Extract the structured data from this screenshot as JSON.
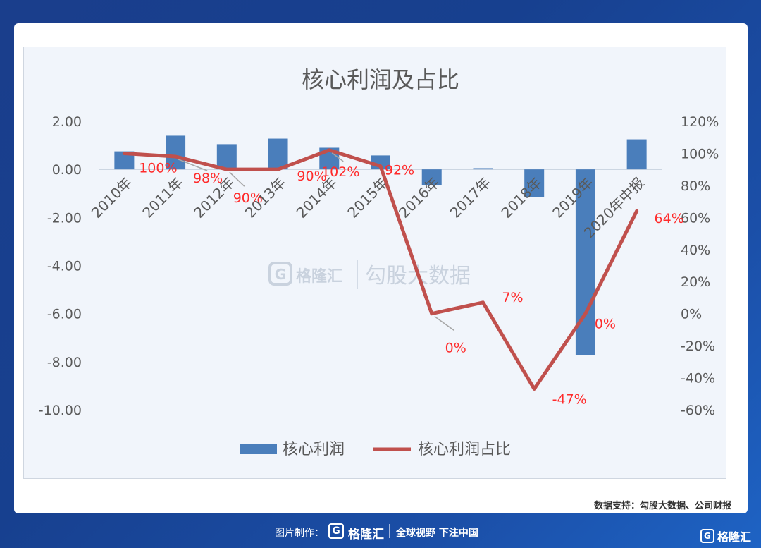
{
  "chart_data": {
    "type": "bar+line",
    "title": "核心利润及占比",
    "categories": [
      "2010年",
      "2011年",
      "2012年",
      "2013年",
      "2014年",
      "2015年",
      "2016年",
      "2017年",
      "2018年",
      "2019年",
      "2020年中报"
    ],
    "series": [
      {
        "name": "核心利润",
        "type": "bar",
        "axis": "left",
        "color": "#4a7ebb",
        "values": [
          0.75,
          1.4,
          1.05,
          1.28,
          0.9,
          0.58,
          -0.65,
          0.05,
          -1.15,
          -7.72,
          1.25
        ]
      },
      {
        "name": "核心利润占比",
        "type": "line",
        "axis": "right",
        "color": "#c0504d",
        "values": [
          100,
          98,
          90,
          90,
          102,
          92,
          0,
          7,
          -47,
          0,
          64
        ],
        "labels": [
          "100%",
          "98%",
          "90%",
          "90%",
          "102%",
          "92%",
          "0%",
          "7%",
          "-47%",
          "0%",
          "64%"
        ]
      }
    ],
    "left_axis": {
      "ticks": [
        "2.00",
        "0.00",
        "-2.00",
        "-4.00",
        "-6.00",
        "-8.00",
        "-10.00"
      ],
      "ylim": [
        -10,
        2
      ]
    },
    "right_axis": {
      "ticks": [
        "120%",
        "100%",
        "80%",
        "60%",
        "40%",
        "20%",
        "0%",
        "-20%",
        "-40%",
        "-60%"
      ],
      "ylim": [
        -60,
        120
      ]
    },
    "legend_position": "bottom",
    "grid": false
  },
  "watermark": {
    "brand": "格隆汇",
    "text": "勾股大数据"
  },
  "source": "数据支持：勾股大数据、公司财报",
  "footer": {
    "made_by": "图片制作：",
    "brand": "格隆汇",
    "slogan": "全球视野 下注中国",
    "logo_letter": "G"
  }
}
